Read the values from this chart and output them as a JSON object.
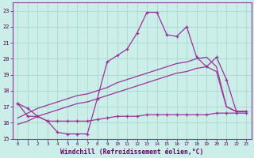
{
  "xlabel": "Windchill (Refroidissement éolien,°C)",
  "hours": [
    0,
    1,
    2,
    3,
    4,
    5,
    6,
    7,
    8,
    9,
    10,
    11,
    12,
    13,
    14,
    15,
    16,
    17,
    18,
    19,
    20,
    21,
    22,
    23
  ],
  "wc_actual": [
    17.2,
    16.9,
    16.4,
    16.1,
    15.4,
    15.3,
    15.3,
    15.3,
    17.5,
    19.8,
    20.2,
    20.6,
    21.6,
    22.9,
    22.9,
    21.5,
    21.4,
    22.0,
    20.1,
    19.5,
    20.1,
    18.7,
    16.7,
    16.7
  ],
  "temp_flat": [
    17.2,
    16.4,
    16.4,
    16.1,
    16.1,
    16.1,
    16.1,
    16.1,
    16.2,
    16.3,
    16.4,
    16.4,
    16.4,
    16.5,
    16.5,
    16.5,
    16.5,
    16.5,
    16.5,
    16.5,
    16.6,
    16.6,
    16.6,
    16.6
  ],
  "trend_upper": [
    16.3,
    16.6,
    16.9,
    17.1,
    17.3,
    17.5,
    17.7,
    17.8,
    18.0,
    18.2,
    18.5,
    18.7,
    18.9,
    19.1,
    19.3,
    19.5,
    19.7,
    19.8,
    20.0,
    20.1,
    19.5,
    17.0,
    16.7,
    16.7
  ],
  "trend_lower": [
    15.9,
    16.1,
    16.4,
    16.6,
    16.8,
    17.0,
    17.2,
    17.3,
    17.5,
    17.7,
    17.9,
    18.1,
    18.3,
    18.5,
    18.7,
    18.9,
    19.1,
    19.2,
    19.4,
    19.5,
    19.2,
    17.0,
    16.7,
    16.7
  ],
  "bg_color": "#cceee8",
  "grid_color": "#aad8d4",
  "line_color": "#993399",
  "ylim_min": 15.0,
  "ylim_max": 23.5,
  "xlim_min": 0,
  "xlim_max": 23
}
